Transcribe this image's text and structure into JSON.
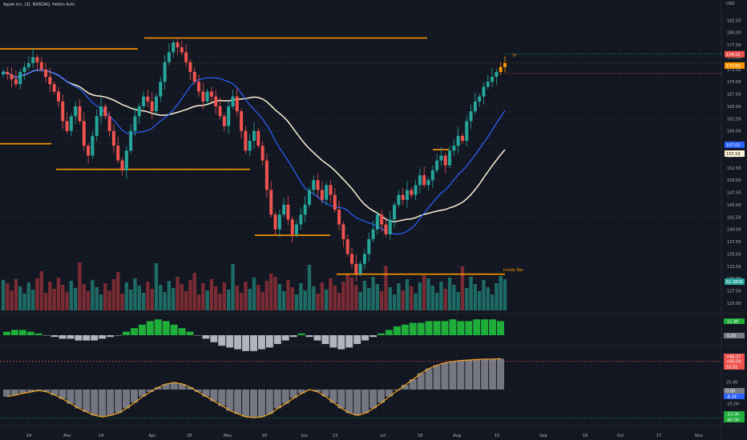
{
  "header": {
    "symbol_title": "Apple Inc, 1D, NASDAQ, Heikin Ashi",
    "currency": "USD"
  },
  "colors": {
    "background": "#131722",
    "up": "#26a69a",
    "down": "#ef5350",
    "orange": "#ff9800",
    "ma_fast": "#2962ff",
    "ma_slow": "#fff3d6",
    "osc_line": "#f5a623",
    "grid": "#1e222d"
  },
  "chart_data": [
    {
      "type": "candlestick",
      "title": "Apple Inc, 1D, NASDAQ, Heikin Ashi",
      "ylim": [
        124.5,
        185
      ],
      "y_ticks": [
        "182.50",
        "180.00",
        "177.50",
        "175.00",
        "172.50",
        "170.00",
        "167.50",
        "165.00",
        "162.50",
        "160.00",
        "157.50",
        "155.00",
        "152.50",
        "150.00",
        "147.50",
        "145.00",
        "142.50",
        "140.00",
        "137.50",
        "135.00",
        "132.50",
        "130.00",
        "127.50",
        "125.00"
      ],
      "x_ticks": [
        "14",
        "Mar",
        "14",
        "Apr",
        "18",
        "May",
        "16",
        "Jun",
        "13",
        "Jul",
        "18",
        "Aug",
        "15",
        "Sep",
        "19",
        "Oct",
        "17",
        "Nov"
      ],
      "price_labels": [
        {
          "text": "174.15",
          "color": "#ef5350"
        },
        {
          "text": "173.80",
          "color": "#ff9800"
        },
        {
          "text": "157.01",
          "color": "#2962ff"
        },
        {
          "text": "155.59",
          "color": "#fff3d6"
        },
        {
          "text": "62.383K",
          "color": "#26a69a"
        }
      ],
      "series": [
        {
          "name": "Heikin Ashi close",
          "values": [
            172,
            171.5,
            170.5,
            169.5,
            172,
            173,
            173.8,
            175,
            174,
            172.5,
            171,
            169.5,
            168,
            166,
            162,
            160,
            163,
            165,
            162,
            157,
            155,
            159,
            163,
            165,
            163,
            160,
            157,
            154,
            152,
            156,
            160,
            163,
            165,
            167,
            166,
            164,
            167,
            170,
            174,
            176,
            178,
            177,
            176,
            174,
            172,
            170,
            168,
            166,
            168,
            167,
            165,
            163,
            161,
            165,
            167,
            164,
            160,
            156,
            158,
            160,
            157,
            154,
            148,
            143,
            140,
            143,
            145,
            142,
            139,
            141,
            143,
            145,
            148,
            150,
            148,
            146,
            149,
            147,
            144,
            141,
            138,
            135,
            133,
            131,
            133,
            135,
            138,
            140,
            143,
            141,
            139,
            142,
            145,
            147,
            146,
            148,
            147,
            149,
            151,
            149,
            150,
            152,
            154,
            155,
            153,
            156,
            157,
            159,
            158,
            162,
            164,
            166,
            167,
            169,
            170,
            171,
            172,
            173,
            173.8
          ]
        }
      ],
      "levels": [
        {
          "label": "",
          "price": 176.7
        },
        {
          "label": "",
          "price": 178.9
        },
        {
          "label": "",
          "price": 157.4
        },
        {
          "label": "",
          "price": 152.2
        },
        {
          "label": "",
          "price": 138.8
        },
        {
          "label": "",
          "price": 156.2
        },
        {
          "label": "",
          "price": 130.9
        }
      ],
      "annotation": "Inside Bar",
      "annotation_small": "IB"
    },
    {
      "type": "histogram",
      "name": "Oscillator 1",
      "labels": [
        "11.48",
        "0.00"
      ],
      "values": [
        2,
        3,
        3,
        2,
        1,
        0,
        -1,
        -2,
        -2,
        -3,
        -3,
        -3,
        -2,
        -1,
        0,
        2,
        4,
        6,
        8,
        9,
        8,
        6,
        4,
        2,
        0,
        -2,
        -4,
        -6,
        -7,
        -8,
        -9,
        -9,
        -8,
        -7,
        -5,
        -3,
        -1,
        1,
        -1,
        -3,
        -5,
        -7,
        -8,
        -7,
        -5,
        -3,
        -1,
        1,
        3,
        5,
        6,
        7,
        7,
        8,
        8,
        8,
        9,
        8,
        8,
        9,
        9,
        9,
        8
      ]
    },
    {
      "type": "histogram",
      "name": "Oscillator 2",
      "labels": [
        "+66.37",
        "+60.00",
        "53.02",
        "25.00",
        "0.00",
        "-8.34",
        "-25.00",
        "-53.00",
        "-60.00"
      ],
      "ylim": [
        -70,
        80
      ],
      "values": [
        -15,
        -12,
        -8,
        -5,
        -2,
        -5,
        -12,
        -20,
        -30,
        -40,
        -48,
        -55,
        -58,
        -55,
        -50,
        -40,
        -28,
        -15,
        -5,
        5,
        12,
        15,
        12,
        5,
        -5,
        -15,
        -25,
        -35,
        -45,
        -52,
        -58,
        -60,
        -58,
        -52,
        -40,
        -30,
        -18,
        -8,
        0,
        -5,
        -15,
        -28,
        -40,
        -50,
        -55,
        -50,
        -40,
        -28,
        -15,
        -2,
        10,
        22,
        35,
        45,
        52,
        57,
        60,
        62,
        63,
        64,
        65,
        65,
        66
      ]
    }
  ]
}
